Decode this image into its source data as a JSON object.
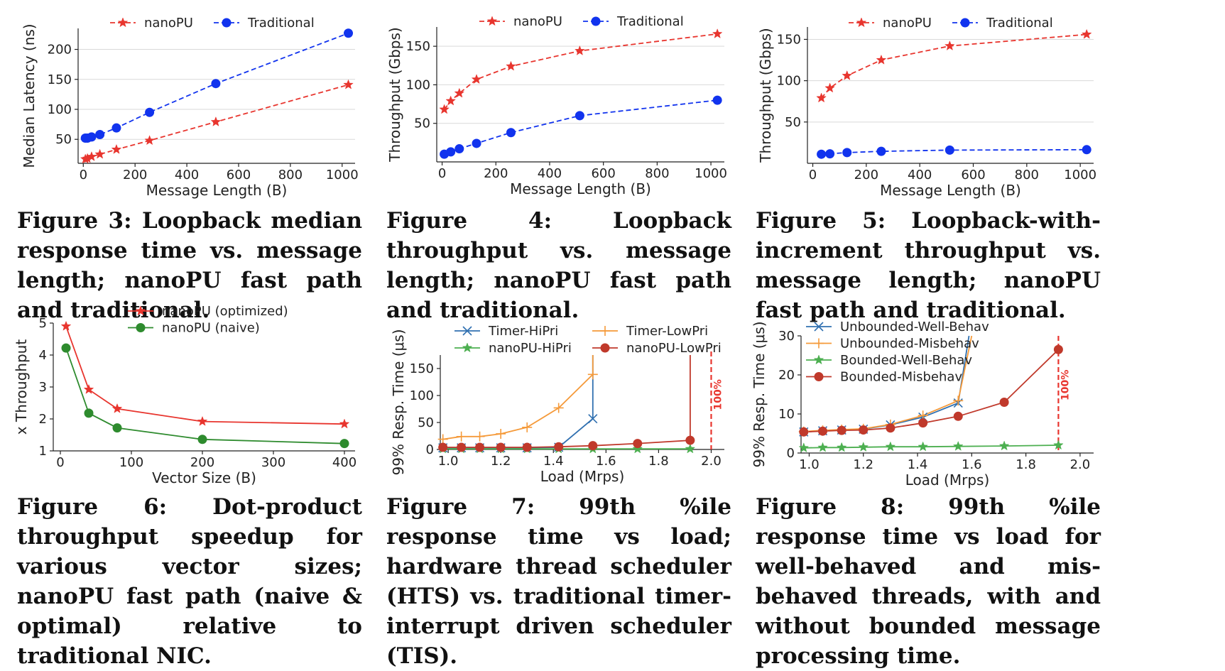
{
  "colors": {
    "red": "#e8352e",
    "blue": "#1133ee",
    "green": "#2e8b2e",
    "tblue": "#3070b0",
    "orange": "#f59a3a",
    "darkred": "#c0392b",
    "limegreen": "#4caf50",
    "threshold": "#e8352e"
  },
  "chart_data": [
    {
      "id": "fig3",
      "type": "line",
      "xlabel": "Message Length (B)",
      "ylabel": "Median Latency (ns)",
      "xlim": [
        -20,
        1050
      ],
      "ylim": [
        10,
        235
      ],
      "xticks": [
        0,
        200,
        400,
        600,
        800,
        1000
      ],
      "yticks": [
        50,
        100,
        150,
        200
      ],
      "grid": "horizontal",
      "legend_position": "top",
      "series": [
        {
          "name": "nanoPU",
          "color": "red",
          "marker": "star",
          "dash": true,
          "x": [
            8,
            16,
            32,
            64,
            128,
            256,
            512,
            1024
          ],
          "y": [
            17,
            18,
            21,
            25,
            33,
            48,
            79,
            141
          ]
        },
        {
          "name": "Traditional",
          "color": "blue",
          "marker": "circle",
          "dash": true,
          "x": [
            8,
            16,
            32,
            64,
            128,
            256,
            512,
            1024
          ],
          "y": [
            52,
            52,
            54,
            58,
            69,
            95,
            143,
            227
          ]
        }
      ]
    },
    {
      "id": "fig4",
      "type": "line",
      "xlabel": "Message Length (B)",
      "ylabel": "Throughput (Gbps)",
      "xlim": [
        -20,
        1050
      ],
      "ylim": [
        0,
        175
      ],
      "xticks": [
        0,
        200,
        400,
        600,
        800,
        1000
      ],
      "yticks": [
        50,
        100,
        150
      ],
      "grid": "horizontal",
      "legend_position": "top",
      "series": [
        {
          "name": "nanoPU",
          "color": "red",
          "marker": "star",
          "dash": true,
          "x": [
            8,
            32,
            64,
            128,
            256,
            512,
            1024
          ],
          "y": [
            68,
            79,
            89,
            107,
            124,
            144,
            166
          ]
        },
        {
          "name": "Traditional",
          "color": "blue",
          "marker": "circle",
          "dash": true,
          "x": [
            8,
            32,
            64,
            128,
            256,
            512,
            1024
          ],
          "y": [
            10,
            13,
            17,
            24,
            38,
            60,
            80
          ]
        }
      ]
    },
    {
      "id": "fig5",
      "type": "line",
      "xlabel": "Message Length (B)",
      "ylabel": "Throughput (Gbps)",
      "xlim": [
        -20,
        1050
      ],
      "ylim": [
        0,
        165
      ],
      "xticks": [
        0,
        200,
        400,
        600,
        800,
        1000
      ],
      "yticks": [
        50,
        100,
        150
      ],
      "grid": "horizontal",
      "legend_position": "top",
      "series": [
        {
          "name": "nanoPU",
          "color": "red",
          "marker": "star",
          "dash": true,
          "x": [
            32,
            64,
            128,
            256,
            512,
            1024
          ],
          "y": [
            79,
            91,
            106,
            125,
            142,
            156
          ]
        },
        {
          "name": "Traditional",
          "color": "blue",
          "marker": "circle",
          "dash": true,
          "x": [
            32,
            64,
            128,
            256,
            512,
            1024
          ],
          "y": [
            11,
            11.5,
            13,
            14.5,
            16,
            16.5
          ]
        }
      ]
    },
    {
      "id": "fig6",
      "type": "line",
      "xlabel": "Vector Size (B)",
      "ylabel": "x Throughput",
      "xlim": [
        -10,
        415
      ],
      "ylim": [
        1,
        5
      ],
      "xticks": [
        0,
        100,
        200,
        300,
        400
      ],
      "yticks": [
        1,
        2,
        3,
        4,
        5
      ],
      "grid": "none",
      "legend_position": "top",
      "series": [
        {
          "name": "nanoPU (optimized)",
          "color": "red",
          "marker": "star",
          "dash": false,
          "x": [
            8,
            40,
            80,
            200,
            400
          ],
          "y": [
            4.9,
            2.92,
            2.32,
            1.92,
            1.84
          ]
        },
        {
          "name": "nanoPU (naive)",
          "color": "green",
          "marker": "circle",
          "dash": false,
          "x": [
            8,
            40,
            80,
            200,
            400
          ],
          "y": [
            4.22,
            2.18,
            1.72,
            1.36,
            1.23
          ]
        }
      ]
    },
    {
      "id": "fig7",
      "type": "line",
      "xlabel": "Load (Mrps)",
      "ylabel": "99% Resp. Time (μs)",
      "xlim": [
        0.97,
        2.05
      ],
      "ylim": [
        0,
        175
      ],
      "xticks": [
        1.0,
        1.2,
        1.4,
        1.6,
        1.8,
        2.0
      ],
      "xtick_labels": [
        "1.0",
        "1.2",
        "1.4",
        "1.6",
        "1.8",
        "2.0"
      ],
      "yticks": [
        0,
        50,
        100,
        150
      ],
      "grid": "none",
      "legend_position": "top",
      "threshold": {
        "x": 2.0,
        "label": "100%"
      },
      "series": [
        {
          "name": "Timer-HiPri",
          "color": "tblue",
          "marker": "x",
          "dash": false,
          "x": [
            0.98,
            1.05,
            1.12,
            1.2,
            1.3,
            1.42,
            1.55,
            1.55
          ],
          "y": [
            3,
            3,
            3,
            3,
            3,
            4,
            57,
            175
          ],
          "markers": 7
        },
        {
          "name": "Timer-LowPri",
          "color": "orange",
          "marker": "plus",
          "dash": false,
          "x": [
            0.98,
            1.05,
            1.12,
            1.2,
            1.3,
            1.42,
            1.55,
            1.55
          ],
          "y": [
            19,
            24,
            24,
            29,
            41,
            77,
            139,
            175
          ],
          "markers": 7
        },
        {
          "name": "nanoPU-HiPri",
          "color": "limegreen",
          "marker": "star",
          "dash": false,
          "x": [
            0.98,
            1.05,
            1.12,
            1.2,
            1.3,
            1.42,
            1.55,
            1.72,
            1.92
          ],
          "y": [
            1,
            1,
            1,
            1,
            1,
            1,
            1,
            1,
            1
          ]
        },
        {
          "name": "nanoPU-LowPri",
          "color": "darkred",
          "marker": "circle",
          "dash": false,
          "x": [
            0.98,
            1.05,
            1.12,
            1.2,
            1.3,
            1.42,
            1.55,
            1.72,
            1.92,
            1.92
          ],
          "y": [
            4,
            4,
            4,
            4,
            4,
            5,
            7,
            11,
            17,
            175
          ],
          "markers": 9
        }
      ]
    },
    {
      "id": "fig8",
      "type": "line",
      "xlabel": "Load (Mrps)",
      "ylabel": "99% Resp. Time (μs)",
      "xlim": [
        0.97,
        2.05
      ],
      "ylim": [
        0,
        30
      ],
      "xticks": [
        1.0,
        1.2,
        1.4,
        1.6,
        1.8,
        2.0
      ],
      "xtick_labels": [
        "1.0",
        "1.2",
        "1.4",
        "1.6",
        "1.8",
        "2.0"
      ],
      "yticks": [
        0,
        10,
        20,
        30
      ],
      "grid": "none",
      "legend_position": "top-left",
      "threshold": {
        "x": 1.92,
        "label": "100%"
      },
      "series": [
        {
          "name": "Unbounded-Well-Behav",
          "color": "tblue",
          "marker": "x",
          "dash": false,
          "x": [
            0.98,
            1.05,
            1.12,
            1.2,
            1.3,
            1.42,
            1.55,
            1.59
          ],
          "y": [
            5.4,
            5.7,
            5.9,
            6.1,
            7.2,
            9.2,
            12.8,
            30
          ],
          "markers": 7
        },
        {
          "name": "Unbounded-Misbehav",
          "color": "orange",
          "marker": "plus",
          "dash": false,
          "x": [
            0.98,
            1.05,
            1.12,
            1.2,
            1.3,
            1.42,
            1.55,
            1.6
          ],
          "y": [
            5.5,
            5.8,
            6.0,
            6.2,
            7.3,
            9.6,
            13.4,
            30
          ],
          "markers": 7
        },
        {
          "name": "Bounded-Well-Behav",
          "color": "limegreen",
          "marker": "star",
          "dash": false,
          "x": [
            0.98,
            1.05,
            1.12,
            1.2,
            1.3,
            1.42,
            1.55,
            1.72,
            1.92
          ],
          "y": [
            1.3,
            1.4,
            1.4,
            1.5,
            1.6,
            1.6,
            1.7,
            1.8,
            2.0
          ]
        },
        {
          "name": "Bounded-Misbehav",
          "color": "darkred",
          "marker": "circle",
          "dash": false,
          "x": [
            0.98,
            1.05,
            1.12,
            1.2,
            1.3,
            1.42,
            1.55,
            1.72,
            1.92
          ],
          "y": [
            5.4,
            5.6,
            5.8,
            5.9,
            6.4,
            7.7,
            9.4,
            13.0,
            26.5
          ]
        }
      ]
    }
  ],
  "captions": {
    "fig3": "Figure 3: Loopback median re­sponse time vs. message length; nanoPU fast path and traditional.",
    "fig4": "Figure 4: Loopback throughput vs. message length; nanoPU fast path and traditional.",
    "fig5": "Figure 5: Loopback-with-increment throughput vs. message length; nanoPU fast path and traditional.",
    "fig6": "Figure 6: Dot-product throughput speedup for various vector sizes; nanoPU fast path (naive & optimal) relative to traditional NIC.",
    "fig7": "Figure 7: 99th %ile response time vs load; hardware thread sched­uler (HTS) vs. traditional timer-interrupt driven scheduler (TIS).",
    "fig8": "Figure 8: 99th %ile response time vs load for well-behaved and mis­behaved threads, with and without bounded message processing time."
  }
}
